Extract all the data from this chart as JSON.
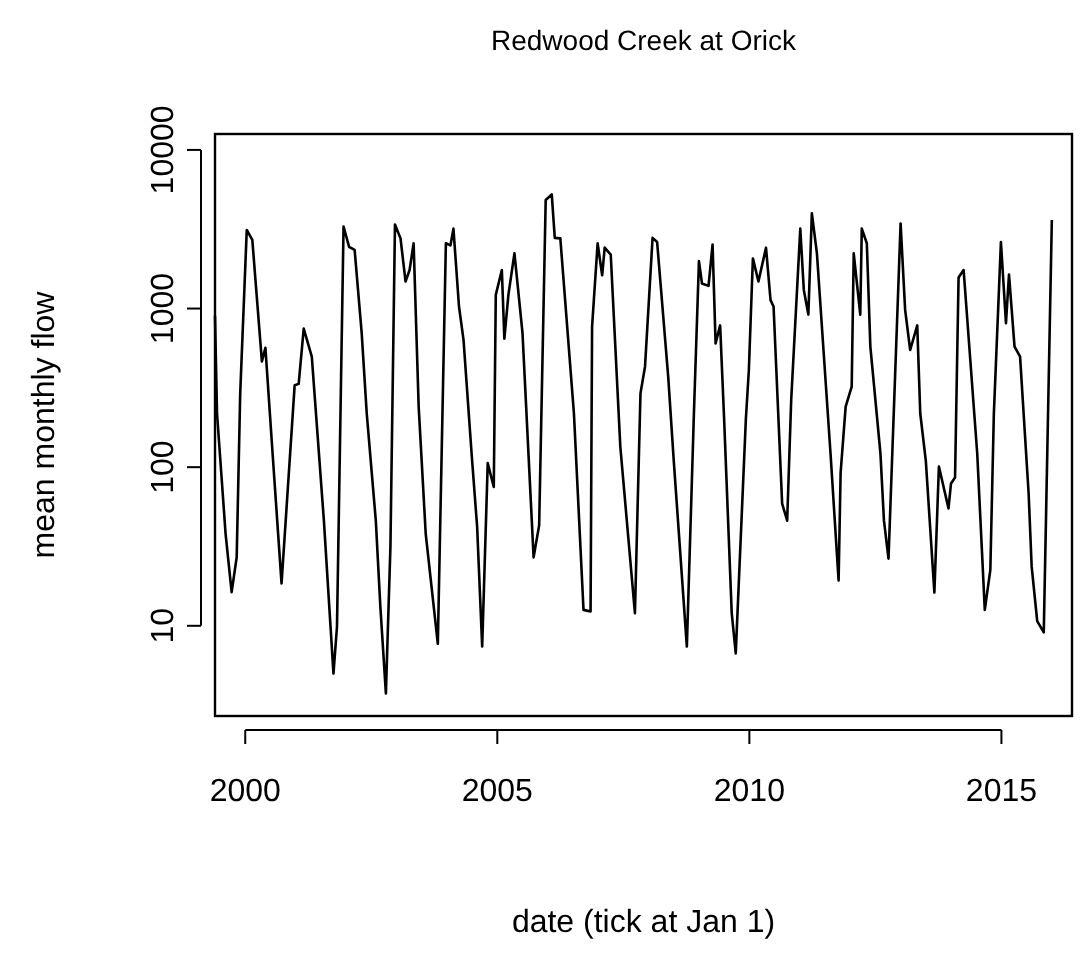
{
  "chart_data": {
    "type": "line",
    "title": "Redwood Creek at Orick",
    "xlabel": "date (tick at Jan 1)",
    "ylabel": "mean monthly flow",
    "log": "y",
    "grid": false,
    "marker": "none",
    "line_style": "solid",
    "xlim": [
      1999.4,
      2016.4
    ],
    "xticks": [
      2000,
      2005,
      2010,
      2015
    ],
    "ylim": [
      2.7,
      12600
    ],
    "yticks": [
      10,
      100,
      1000,
      10000
    ],
    "series": [
      {
        "color": "#000000",
        "x": [
          1999.4,
          1999.44,
          1999.61,
          1999.73,
          1999.83,
          1999.9,
          2000.03,
          2000.14,
          2000.33,
          2000.4,
          2000.56,
          2000.72,
          2000.98,
          2001.06,
          2001.16,
          2001.32,
          2001.56,
          2001.75,
          2001.82,
          2001.95,
          2002.06,
          2002.17,
          2002.31,
          2002.41,
          2002.59,
          2002.68,
          2002.79,
          2002.88,
          2002.97,
          2003.08,
          2003.18,
          2003.26,
          2003.34,
          2003.44,
          2003.58,
          2003.82,
          2003.98,
          2004.07,
          2004.13,
          2004.24,
          2004.33,
          2004.49,
          2004.6,
          2004.7,
          2004.81,
          2004.93,
          2004.97,
          2005.09,
          2005.14,
          2005.22,
          2005.34,
          2005.5,
          2005.72,
          2005.83,
          2005.96,
          2006.08,
          2006.14,
          2006.25,
          2006.52,
          2006.71,
          2006.85,
          2006.88,
          2006.99,
          2007.08,
          2007.13,
          2007.25,
          2007.44,
          2007.73,
          2007.84,
          2007.93,
          2008.08,
          2008.17,
          2008.39,
          2008.5,
          2008.76,
          2008.9,
          2009.0,
          2009.06,
          2009.19,
          2009.27,
          2009.33,
          2009.42,
          2009.5,
          2009.65,
          2009.73,
          2009.93,
          2009.99,
          2010.07,
          2010.18,
          2010.33,
          2010.42,
          2010.48,
          2010.65,
          2010.75,
          2010.83,
          2011.01,
          2011.08,
          2011.17,
          2011.24,
          2011.34,
          2011.61,
          2011.77,
          2011.81,
          2011.91,
          2012.03,
          2012.07,
          2012.2,
          2012.23,
          2012.33,
          2012.4,
          2012.6,
          2012.67,
          2012.76,
          2013.0,
          2013.09,
          2013.19,
          2013.33,
          2013.39,
          2013.5,
          2013.67,
          2013.76,
          2013.95,
          2014.0,
          2014.08,
          2014.15,
          2014.25,
          2014.52,
          2014.67,
          2014.78,
          2014.85,
          2014.99,
          2015.09,
          2015.15,
          2015.26,
          2015.37,
          2015.54,
          2015.6,
          2015.71,
          2015.84,
          2016.0
        ],
        "values": [
          900,
          218,
          38,
          16.3,
          27,
          292,
          3130,
          2710,
          464,
          565,
          101,
          18.5,
          328,
          335,
          748,
          498,
          46,
          5.0,
          9.9,
          3290,
          2450,
          2340,
          699,
          218,
          46,
          13.2,
          3.75,
          31.6,
          3390,
          2770,
          1480,
          1750,
          2580,
          241,
          38,
          7.7,
          2580,
          2500,
          3190,
          1030,
          634,
          122,
          42,
          7.4,
          106,
          75,
          1220,
          1750,
          646,
          1220,
          2230,
          699,
          27,
          43,
          4840,
          5240,
          2790,
          2770,
          218,
          12.6,
          12.3,
          769,
          2580,
          1620,
          2420,
          2190,
          135,
          12,
          292,
          430,
          2790,
          2630,
          372,
          110,
          7.4,
          218,
          1990,
          1440,
          1390,
          2530,
          603,
          783,
          199,
          12,
          6.7,
          199,
          410,
          2070,
          1480,
          2420,
          1130,
          1030,
          59,
          46,
          266,
          3190,
          1310,
          916,
          3980,
          2230,
          122,
          19.3,
          92,
          241,
          322,
          2230,
          916,
          3190,
          2580,
          576,
          122,
          46,
          26.5,
          3440,
          980,
          548,
          783,
          218,
          110,
          16.2,
          101,
          55,
          79,
          86,
          1570,
          1750,
          122,
          12.6,
          22.5,
          218,
          2630,
          809,
          1640,
          576,
          498,
          68,
          23.6,
          10.7,
          9.1,
          3620
        ]
      }
    ]
  }
}
